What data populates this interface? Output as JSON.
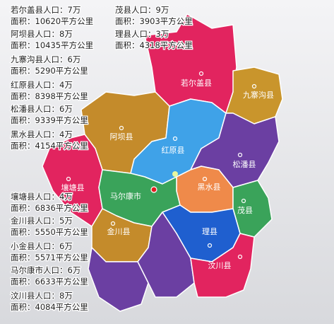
{
  "info": [
    {
      "population": "若尔盖县人口：7万",
      "area": "面积：10620平方公里"
    },
    {
      "population": "茂县人口：9万",
      "area": "面积：3903平方公里"
    },
    {
      "population": "阿坝县人口：8万",
      "area": "面积：10435平方公里"
    },
    {
      "population": "理县人口：3万",
      "area": "面积：4318平方公里"
    },
    {
      "population": "九寨沟县人口：6万",
      "area": "面积：5290平方公里"
    },
    {
      "population": "红原县人口：4万",
      "area": "面积：8398平方公里"
    },
    {
      "population": "松潘县人口：6万",
      "area": "面积：9339平方公里"
    },
    {
      "population": "黑水县人口：4万",
      "area": "面积：4154平方公里"
    },
    {
      "population": "壤塘县人口：4万",
      "area": "面积：6836平方公里"
    },
    {
      "population": "金川县人口：5万",
      "area": "面积：5550平方公里"
    },
    {
      "population": "小金县人口：6万",
      "area": "面积：5571平方公里"
    },
    {
      "population": "马尔康市人口：6万",
      "area": "面积：6633平方公里"
    },
    {
      "population": "汶川县人口：8万",
      "area": "面积：4084平方公里"
    }
  ],
  "map_labels": [
    "若尔盖县",
    "九寨沟县",
    "阿坝县",
    "红原县",
    "松潘县",
    "壤塘县",
    "黑水县",
    "马尔康市",
    "茂县",
    "金川县",
    "理县",
    "汶川县"
  ]
}
